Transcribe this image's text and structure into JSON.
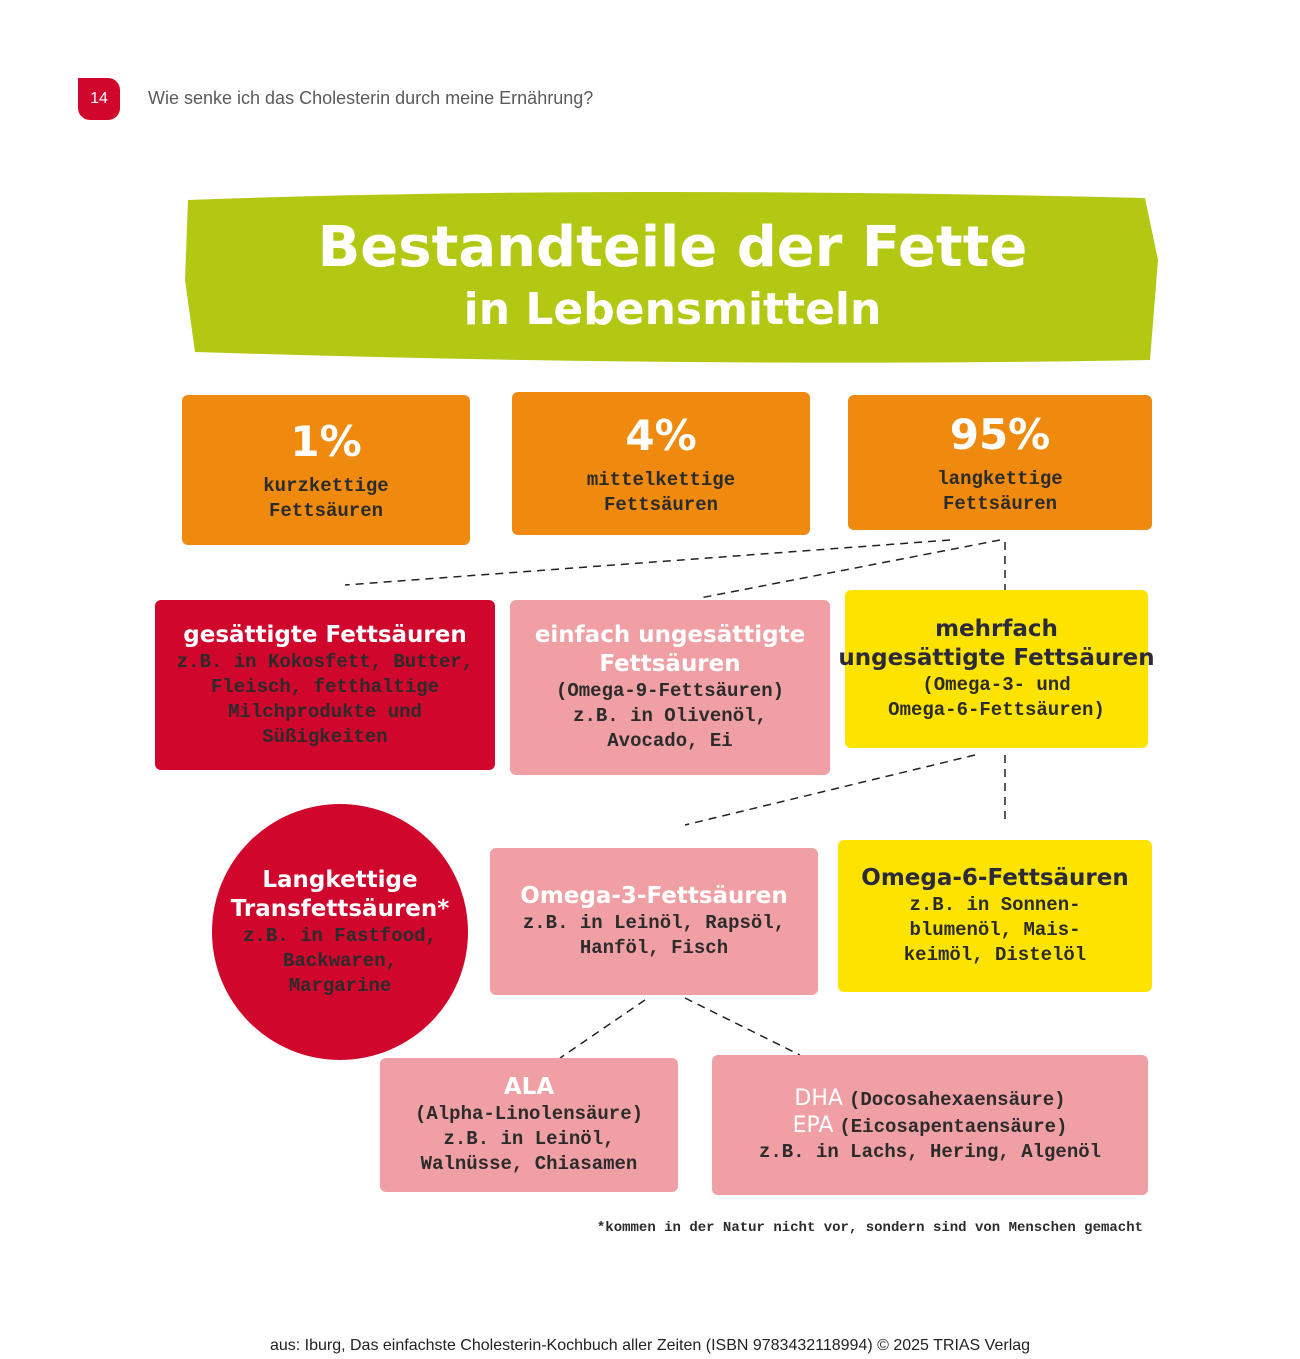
{
  "header": {
    "page_number": "14",
    "title": "Wie senke ich das Cholesterin durch meine Ernährung?"
  },
  "infographic": {
    "title": [
      "Bestandteile der Fette",
      "in Lebensmitteln"
    ],
    "chain_lengths": [
      {
        "percent": "1%",
        "label": [
          "kurzkettige",
          "Fettsäuren"
        ]
      },
      {
        "percent": "4%",
        "label": [
          "mittelkettige",
          "Fettsäuren"
        ]
      },
      {
        "percent": "95%",
        "label": [
          "langkettige",
          "Fettsäuren"
        ]
      }
    ],
    "long_chain_types": [
      {
        "title": [
          "gesättigte Fettsäuren"
        ],
        "text": [
          "z.B. in Kokosfett, Butter,",
          "Fleisch, fetthaltige",
          "Milchprodukte und",
          "Süßigkeiten"
        ]
      },
      {
        "title": [
          "einfach ungesättigte",
          "Fettsäuren"
        ],
        "text": [
          "(Omega-9-Fettsäuren)",
          "z.B. in Olivenöl,",
          "Avocado, Ei"
        ]
      },
      {
        "title": [
          "mehrfach",
          "ungesättigte Fettsäuren"
        ],
        "text": [
          "(Omega-3- und",
          "Omega-6-Fettsäuren)"
        ]
      }
    ],
    "trans_fats": {
      "title": [
        "Langkettige",
        "Transfettsäuren*"
      ],
      "text": [
        "z.B. in Fastfood,",
        "Backwaren,",
        "Margarine"
      ]
    },
    "polyunsaturated": [
      {
        "title": [
          "Omega-3-Fettsäuren"
        ],
        "text": [
          "z.B. in Leinöl, Rapsöl,",
          "Hanföl, Fisch"
        ]
      },
      {
        "title": [
          "Omega-6-Fettsäuren"
        ],
        "text": [
          "z.B. in Sonnen-",
          "blumenöl, Mais-",
          "keimöl, Distelöl"
        ]
      }
    ],
    "omega3": [
      {
        "title": [
          "ALA"
        ],
        "text": [
          "(Alpha-Linolensäure)",
          "z.B. in Leinöl,",
          "Walnüsse, Chiasamen"
        ]
      },
      {
        "rows": [
          {
            "abbr": "DHA",
            "name": "(Docosahexaensäure)"
          },
          {
            "abbr": "EPA",
            "name": "(Eicosapentaensäure)"
          }
        ],
        "text": [
          "z.B. in Lachs, Hering, Algenöl"
        ]
      }
    ],
    "footnote": "*kommen in der Natur nicht vor, sondern sind von Menschen gemacht"
  },
  "source": "aus: Iburg, Das einfachste Cholesterin-Kochbuch aller Zeiten (ISBN 9783432118994) © 2025 TRIAS Verlag"
}
